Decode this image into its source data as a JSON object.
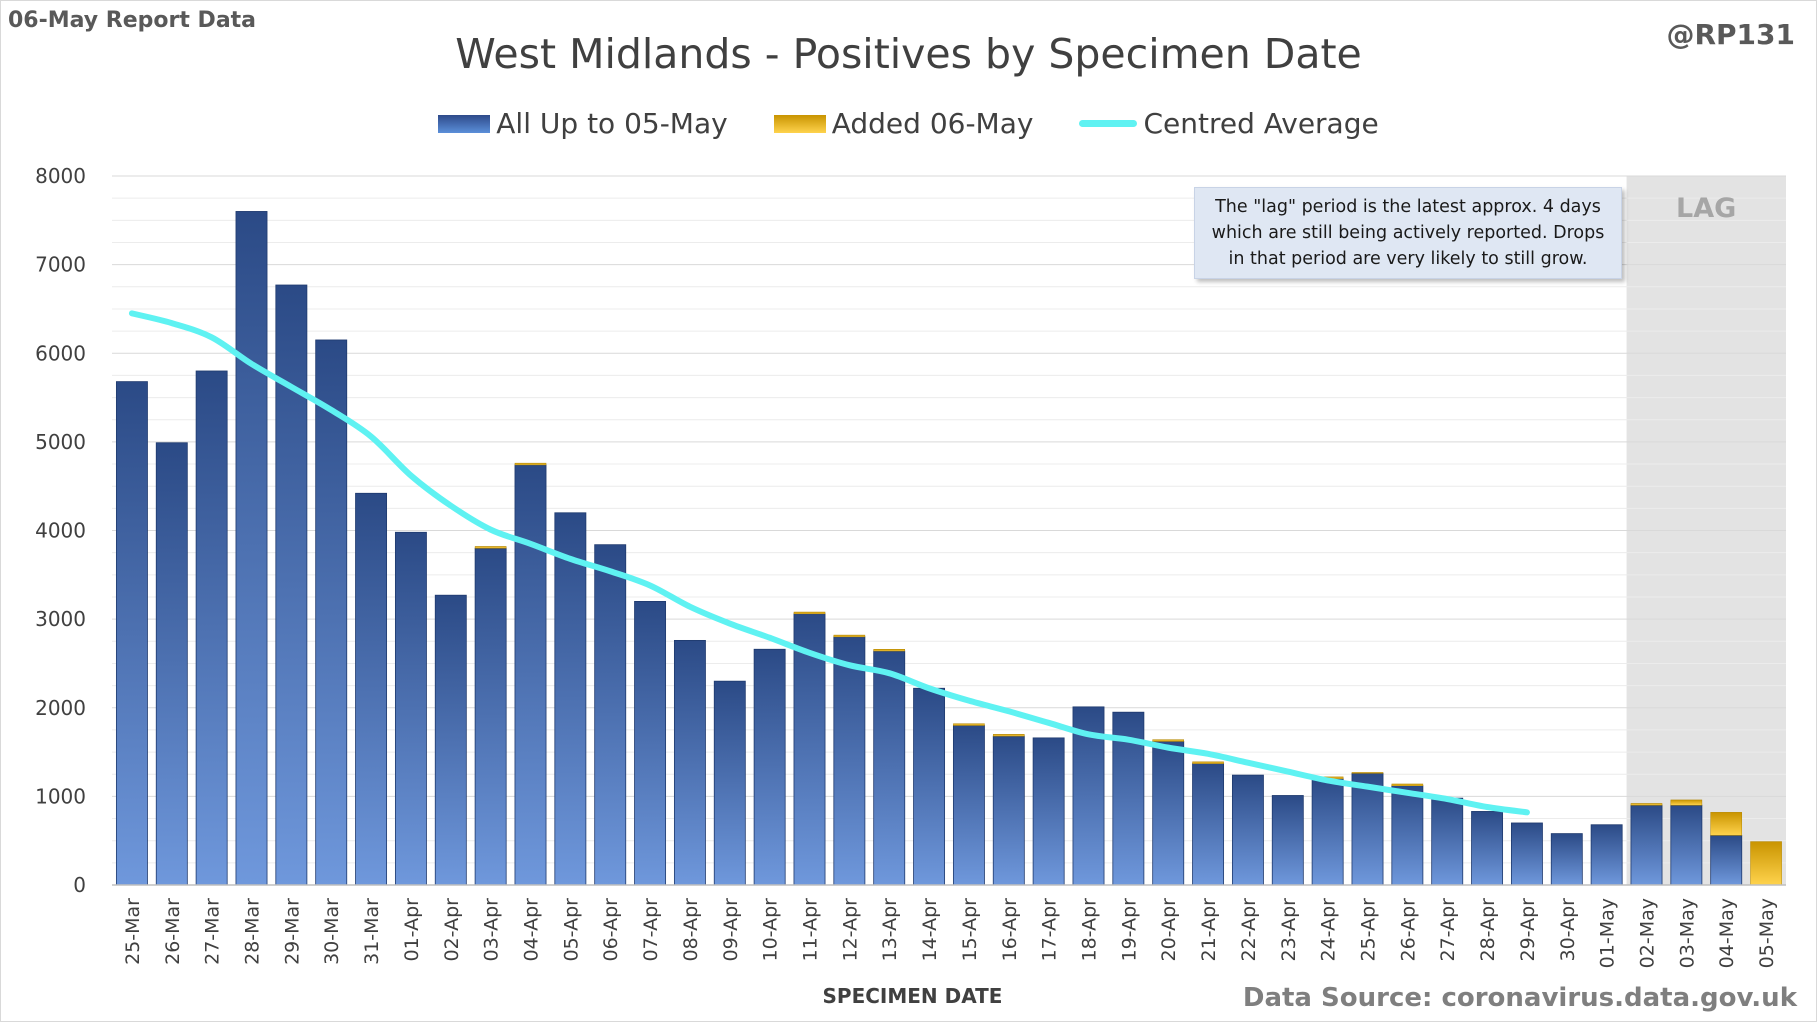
{
  "header": {
    "report_label": "06-May Report Data",
    "handle": "@RP131",
    "title": "West Midlands - Positives by Specimen Date"
  },
  "legend": {
    "series_a": "All Up to 05-May",
    "series_b": "Added 06-May",
    "series_c": "Centred Average"
  },
  "note": "The \"lag\" period is the latest approx. 4 days which are still being actively reported.  Drops in that period are very likely to still grow.",
  "lag_label": "LAG",
  "footer": {
    "xlabel": "SPECIMEN DATE",
    "source": "Data Source: coronavirus.data.gov.uk"
  },
  "colors": {
    "base_top": "#2b4a86",
    "base_bottom": "#6f98dc",
    "added_top": "#c99400",
    "added_bottom": "#ffd34d",
    "average": "#5ff2f2",
    "grid": "#d9d9d9",
    "lag_shade": "#e3e3e3"
  },
  "chart_data": {
    "type": "bar",
    "stacked": true,
    "ylim": [
      0,
      8000
    ],
    "yticks": [
      0,
      1000,
      2000,
      3000,
      4000,
      5000,
      6000,
      7000,
      8000
    ],
    "grid": true,
    "legend_position": "top",
    "lag_start_category": "02-May",
    "categories": [
      "25-Mar",
      "26-Mar",
      "27-Mar",
      "28-Mar",
      "29-Mar",
      "30-Mar",
      "31-Mar",
      "01-Apr",
      "02-Apr",
      "03-Apr",
      "04-Apr",
      "05-Apr",
      "06-Apr",
      "07-Apr",
      "08-Apr",
      "09-Apr",
      "10-Apr",
      "11-Apr",
      "12-Apr",
      "13-Apr",
      "14-Apr",
      "15-Apr",
      "16-Apr",
      "17-Apr",
      "18-Apr",
      "19-Apr",
      "20-Apr",
      "21-Apr",
      "22-Apr",
      "23-Apr",
      "24-Apr",
      "25-Apr",
      "26-Apr",
      "27-Apr",
      "28-Apr",
      "29-Apr",
      "30-Apr",
      "01-May",
      "02-May",
      "03-May",
      "04-May",
      "05-May"
    ],
    "series": [
      {
        "name": "All Up to 05-May",
        "values": [
          5680,
          4990,
          5800,
          7600,
          6770,
          6150,
          4420,
          3980,
          3270,
          3800,
          4740,
          4200,
          3840,
          3200,
          2760,
          2300,
          2660,
          3060,
          2800,
          2640,
          2220,
          1800,
          1680,
          1660,
          2010,
          1950,
          1620,
          1370,
          1240,
          1010,
          1200,
          1260,
          1120,
          980,
          830,
          700,
          580,
          680,
          900,
          900,
          560,
          0
        ]
      },
      {
        "name": "Added 06-May",
        "values": [
          0,
          0,
          0,
          0,
          0,
          0,
          0,
          0,
          0,
          20,
          20,
          0,
          0,
          0,
          0,
          0,
          0,
          20,
          20,
          20,
          0,
          20,
          20,
          0,
          0,
          0,
          20,
          20,
          0,
          0,
          20,
          10,
          20,
          0,
          0,
          0,
          0,
          0,
          20,
          60,
          260,
          490
        ]
      }
    ],
    "average": {
      "name": "Centred Average",
      "values": [
        6450,
        6340,
        6180,
        5880,
        5620,
        5360,
        5060,
        4620,
        4280,
        4010,
        3850,
        3680,
        3540,
        3380,
        3140,
        2950,
        2790,
        2620,
        2480,
        2390,
        2220,
        2080,
        1960,
        1830,
        1700,
        1640,
        1550,
        1480,
        1380,
        1280,
        1180,
        1110,
        1040,
        970,
        880,
        820,
        null,
        null,
        null,
        null,
        null,
        null
      ]
    }
  }
}
